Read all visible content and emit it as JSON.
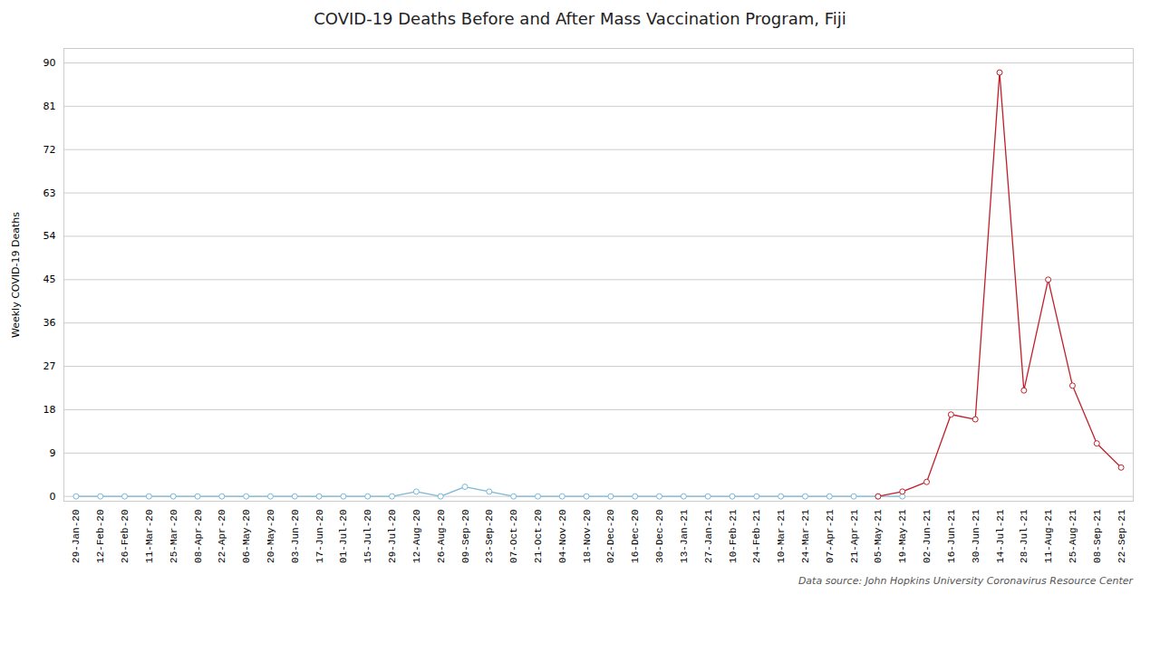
{
  "chart_data": {
    "type": "line",
    "title": "COVID-19 Deaths Before and After Mass Vaccination Program, Fiji",
    "ylabel": "Weekly COVID-19 Deaths",
    "annotations": [
      "Data source: John Hopkins University Coronavirus Resource Center"
    ],
    "categories": [
      "29-Jan-20",
      "12-Feb-20",
      "26-Feb-20",
      "11-Mar-20",
      "25-Mar-20",
      "08-Apr-20",
      "22-Apr-20",
      "06-May-20",
      "20-May-20",
      "03-Jun-20",
      "17-Jun-20",
      "01-Jul-20",
      "15-Jul-20",
      "29-Jul-20",
      "12-Aug-20",
      "26-Aug-20",
      "09-Sep-20",
      "23-Sep-20",
      "07-Oct-20",
      "21-Oct-20",
      "04-Nov-20",
      "18-Nov-20",
      "02-Dec-20",
      "16-Dec-20",
      "30-Dec-20",
      "13-Jan-21",
      "27-Jan-21",
      "10-Feb-21",
      "24-Feb-21",
      "10-Mar-21",
      "24-Mar-21",
      "07-Apr-21",
      "21-Apr-21",
      "05-May-21",
      "19-May-21",
      "02-Jun-21",
      "16-Jun-21",
      "30-Jun-21",
      "14-Jul-21",
      "28-Jul-21",
      "11-Aug-21",
      "25-Aug-21",
      "08-Sep-21",
      "22-Sep-21"
    ],
    "series": [
      {
        "color": "#7ab8d9",
        "marker": "circle",
        "values": [
          0,
          0,
          0,
          0,
          0,
          0,
          0,
          0,
          0,
          0,
          0,
          0,
          0,
          0,
          1,
          0,
          2,
          1,
          0,
          0,
          0,
          0,
          0,
          0,
          0,
          0,
          0,
          0,
          0,
          0,
          0,
          0,
          0,
          0,
          0,
          null,
          null,
          null,
          null,
          null,
          null,
          null,
          null,
          null
        ]
      },
      {
        "color": "#c0202a",
        "marker": "circle",
        "values": [
          null,
          null,
          null,
          null,
          null,
          null,
          null,
          null,
          null,
          null,
          null,
          null,
          null,
          null,
          null,
          null,
          null,
          null,
          null,
          null,
          null,
          null,
          null,
          null,
          null,
          null,
          null,
          null,
          null,
          null,
          null,
          null,
          null,
          0,
          1,
          3,
          17,
          16,
          88,
          22,
          45,
          23,
          11,
          6
        ]
      }
    ],
    "ylim": [
      -1,
      93
    ],
    "yticks": [
      0,
      9,
      18,
      27,
      36,
      45,
      54,
      63,
      72,
      81,
      90
    ],
    "grid": true
  }
}
